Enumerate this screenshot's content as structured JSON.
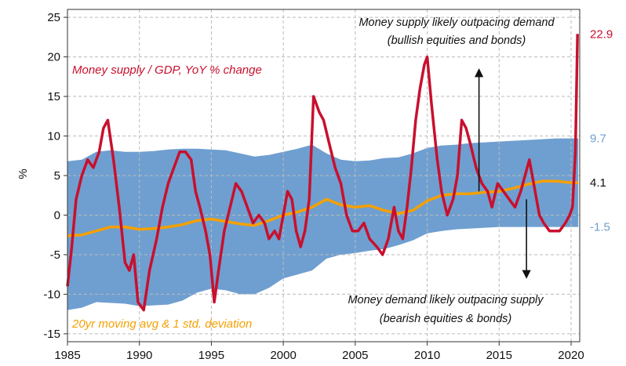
{
  "chart_data": {
    "type": "line",
    "ylabel": "%",
    "xlim": [
      1985,
      2020.6
    ],
    "ylim": [
      -16,
      26
    ],
    "grid": true,
    "x_ticks": [
      1985,
      1990,
      1995,
      2000,
      2005,
      2010,
      2015,
      2020
    ],
    "y_ticks": [
      -15,
      -10,
      -5,
      0,
      5,
      10,
      15,
      20,
      25
    ],
    "x_tick_labels": [
      "1985",
      "1990",
      "1995",
      "2000",
      "2005",
      "2010",
      "2015",
      "2020"
    ],
    "y_tick_labels": [
      "-15",
      "-10",
      "-5",
      "0",
      "5",
      "10",
      "15",
      "20",
      "25"
    ],
    "colors": {
      "series": "#c8102e",
      "moving_avg": "#f5a000",
      "band": "#6f9fd0",
      "grid": "#bbbbbb"
    },
    "series": [
      {
        "name": "Money supply / GDP, YoY % change",
        "x": [
          1985.0,
          1985.3,
          1985.6,
          1986.0,
          1986.4,
          1986.8,
          1987.2,
          1987.5,
          1987.8,
          1988.2,
          1988.6,
          1989.0,
          1989.3,
          1989.6,
          1989.9,
          1990.3,
          1990.7,
          1991.2,
          1991.6,
          1992.0,
          1992.4,
          1992.8,
          1993.2,
          1993.6,
          1993.9,
          1994.2,
          1994.6,
          1994.9,
          1995.2,
          1995.5,
          1995.9,
          1996.3,
          1996.7,
          1997.1,
          1997.5,
          1997.9,
          1998.3,
          1998.7,
          1999.0,
          1999.4,
          1999.7,
          2000.0,
          2000.3,
          2000.6,
          2000.9,
          2001.2,
          2001.5,
          2001.8,
          2002.1,
          2002.5,
          2002.8,
          2003.2,
          2003.6,
          2004.0,
          2004.4,
          2004.8,
          2005.2,
          2005.6,
          2006.0,
          2006.5,
          2006.9,
          2007.3,
          2007.7,
          2008.0,
          2008.3,
          2008.6,
          2008.9,
          2009.2,
          2009.5,
          2009.8,
          2010.0,
          2010.3,
          2010.7,
          2011.0,
          2011.4,
          2011.8,
          2012.1,
          2012.4,
          2012.7,
          2013.0,
          2013.4,
          2013.8,
          2014.2,
          2014.5,
          2014.9,
          2015.3,
          2015.7,
          2016.1,
          2016.5,
          2016.8,
          2017.1,
          2017.4,
          2017.8,
          2018.1,
          2018.5,
          2018.9,
          2019.2,
          2019.6,
          2019.9,
          2020.1,
          2020.3,
          2020.45
        ],
        "y": [
          -9,
          -4,
          2,
          5,
          7,
          6,
          8,
          11,
          12,
          7,
          1,
          -6,
          -7,
          -5,
          -11,
          -12,
          -7,
          -3,
          1,
          4,
          6,
          8,
          8,
          7,
          3,
          1,
          -2,
          -5,
          -11,
          -7,
          -2,
          1,
          4,
          3,
          1,
          -1,
          0,
          -1,
          -3,
          -2,
          -3,
          0,
          3,
          2,
          -2,
          -4,
          -2,
          2,
          15,
          13,
          12,
          9,
          6,
          4,
          0,
          -2,
          -2,
          -1,
          -3,
          -4,
          -5,
          -3,
          1,
          -2,
          -3,
          1,
          6,
          12,
          16,
          19,
          20,
          14,
          7,
          3,
          0,
          2,
          5,
          12,
          11,
          9,
          6,
          4,
          3,
          1,
          4,
          3,
          2,
          1,
          3,
          5,
          7,
          4,
          0,
          -1,
          -2,
          -2,
          -2,
          -1,
          0,
          1,
          8,
          22.9
        ]
      },
      {
        "name": "20yr moving avg",
        "x": [
          1985,
          1986,
          1987,
          1988,
          1989,
          1990,
          1991,
          1992,
          1993,
          1994,
          1995,
          1996,
          1997,
          1998,
          1999,
          2000,
          2001,
          2002,
          2003,
          2004,
          2005,
          2006,
          2007,
          2008,
          2009,
          2010,
          2011,
          2012,
          2013,
          2014,
          2015,
          2016,
          2017,
          2018,
          2019,
          2020,
          2020.5
        ],
        "y": [
          -2.6,
          -2.5,
          -2.0,
          -1.5,
          -1.5,
          -1.8,
          -1.7,
          -1.5,
          -1.2,
          -0.7,
          -0.5,
          -0.8,
          -1.1,
          -1.3,
          -0.7,
          0.0,
          0.4,
          1.0,
          2.0,
          1.3,
          1.0,
          1.2,
          0.6,
          0.2,
          0.6,
          1.8,
          2.5,
          2.7,
          2.7,
          2.9,
          3.0,
          3.4,
          3.9,
          4.3,
          4.3,
          4.1,
          4.1
        ]
      }
    ],
    "band": {
      "name": "1 std. deviation",
      "x": [
        1985,
        1986,
        1987,
        1988,
        1989,
        1990,
        1991,
        1992,
        1993,
        1994,
        1995,
        1996,
        1997,
        1998,
        1999,
        2000,
        2001,
        2002,
        2003,
        2004,
        2005,
        2006,
        2007,
        2008,
        2009,
        2010,
        2011,
        2012,
        2013,
        2014,
        2015,
        2016,
        2017,
        2018,
        2019,
        2020,
        2020.5
      ],
      "upper": [
        6.8,
        7.0,
        8.0,
        8.2,
        8.0,
        8.0,
        8.1,
        8.3,
        8.4,
        8.4,
        8.3,
        8.2,
        7.8,
        7.4,
        7.6,
        8.0,
        8.4,
        8.9,
        7.8,
        7.0,
        6.8,
        6.9,
        7.2,
        7.3,
        7.8,
        8.5,
        8.8,
        8.9,
        9.1,
        9.2,
        9.3,
        9.4,
        9.5,
        9.6,
        9.7,
        9.7,
        9.7
      ],
      "lower": [
        -12.0,
        -11.7,
        -11.0,
        -11.1,
        -11.2,
        -11.5,
        -11.4,
        -11.3,
        -10.8,
        -9.8,
        -9.3,
        -9.5,
        -10.0,
        -10.0,
        -9.2,
        -8.0,
        -7.5,
        -7.0,
        -5.5,
        -5.0,
        -4.8,
        -4.5,
        -4.3,
        -3.8,
        -3.2,
        -2.3,
        -2.0,
        -1.8,
        -1.7,
        -1.6,
        -1.5,
        -1.5,
        -1.5,
        -1.5,
        -1.5,
        -1.5,
        -1.5
      ]
    },
    "end_values": [
      {
        "value": 22.9,
        "text": "22.9",
        "color": "#c8102e"
      },
      {
        "value": 9.7,
        "text": "9.7",
        "color": "#6f9fd0"
      },
      {
        "value": 4.1,
        "text": "4.1",
        "color": "#111111"
      },
      {
        "value": -1.5,
        "text": "-1.5",
        "color": "#6f9fd0"
      }
    ],
    "annotations": {
      "top_line1": "Money supply likely outpacing demand",
      "top_line2": "(bullish equities and bonds)",
      "bottom_line1": "Money demand likely outpacing supply",
      "bottom_line2": "(bearish equities & bonds)",
      "series_label": "Money supply / GDP, YoY % change",
      "band_label": "20yr moving avg & 1 std. deviation"
    },
    "arrows": [
      {
        "x": 2013.6,
        "from": 3.0,
        "to": 18.0
      },
      {
        "x": 2016.9,
        "from": 2.0,
        "to": -7.5
      }
    ]
  }
}
